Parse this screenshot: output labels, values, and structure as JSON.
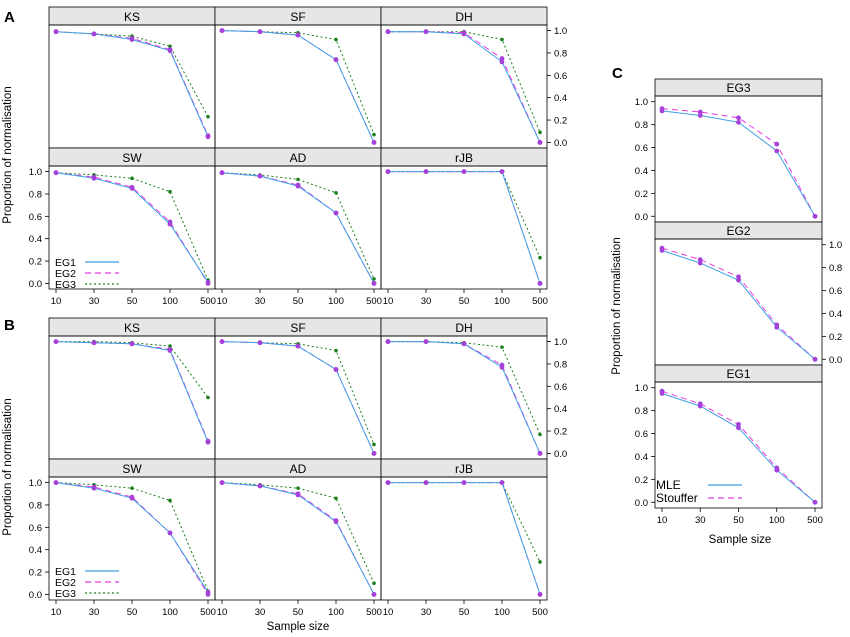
{
  "chart_data": [
    {
      "type": "line",
      "panel_label": "A",
      "xlabel": "",
      "ylabel": "Proportion of normalisation",
      "x_categories": [
        "10",
        "30",
        "50",
        "100",
        "500"
      ],
      "y_ticks": [
        "0.0",
        "0.2",
        "0.4",
        "0.6",
        "0.8",
        "1.0"
      ],
      "ylim": [
        -0.05,
        1.05
      ],
      "legend_entries": [
        "EG1",
        "EG2",
        "EG3"
      ],
      "legend_placement": "bottom-left of lower-left panel",
      "panels": [
        {
          "title": "KS",
          "series": [
            {
              "name": "EG1",
              "values": [
                0.99,
                0.97,
                0.92,
                0.82,
                0.05
              ]
            },
            {
              "name": "EG2",
              "values": [
                0.99,
                0.97,
                0.93,
                0.83,
                0.06
              ]
            },
            {
              "name": "EG3",
              "values": [
                0.99,
                0.97,
                0.95,
                0.86,
                0.23
              ]
            }
          ]
        },
        {
          "title": "SF",
          "series": [
            {
              "name": "EG1",
              "values": [
                1.0,
                0.99,
                0.96,
                0.74,
                0.0
              ]
            },
            {
              "name": "EG2",
              "values": [
                1.0,
                0.99,
                0.96,
                0.74,
                0.0
              ]
            },
            {
              "name": "EG3",
              "values": [
                1.0,
                0.99,
                0.98,
                0.92,
                0.07
              ]
            }
          ]
        },
        {
          "title": "DH",
          "series": [
            {
              "name": "EG1",
              "values": [
                0.99,
                0.99,
                0.97,
                0.72,
                0.0
              ]
            },
            {
              "name": "EG2",
              "values": [
                0.99,
                0.99,
                0.98,
                0.75,
                0.0
              ]
            },
            {
              "name": "EG3",
              "values": [
                0.99,
                0.99,
                0.99,
                0.92,
                0.09
              ]
            }
          ]
        },
        {
          "title": "SW",
          "series": [
            {
              "name": "EG1",
              "values": [
                0.99,
                0.94,
                0.85,
                0.53,
                0.01
              ]
            },
            {
              "name": "EG2",
              "values": [
                0.99,
                0.95,
                0.86,
                0.55,
                0.0
              ]
            },
            {
              "name": "EG3",
              "values": [
                0.99,
                0.97,
                0.94,
                0.82,
                0.03
              ]
            }
          ]
        },
        {
          "title": "AD",
          "series": [
            {
              "name": "EG1",
              "values": [
                0.99,
                0.96,
                0.87,
                0.63,
                0.0
              ]
            },
            {
              "name": "EG2",
              "values": [
                0.99,
                0.96,
                0.88,
                0.63,
                0.0
              ]
            },
            {
              "name": "EG3",
              "values": [
                0.99,
                0.97,
                0.93,
                0.81,
                0.04
              ]
            }
          ]
        },
        {
          "title": "rJB",
          "series": [
            {
              "name": "EG1",
              "values": [
                1.0,
                1.0,
                1.0,
                1.0,
                0.0
              ]
            },
            {
              "name": "EG2",
              "values": [
                1.0,
                1.0,
                1.0,
                1.0,
                0.0
              ]
            },
            {
              "name": "EG3",
              "values": [
                1.0,
                1.0,
                1.0,
                1.0,
                0.23
              ]
            }
          ]
        }
      ]
    },
    {
      "type": "line",
      "panel_label": "B",
      "xlabel": "Sample size",
      "ylabel": "Proportion of normalisation",
      "x_categories": [
        "10",
        "30",
        "50",
        "100",
        "500"
      ],
      "y_ticks": [
        "0.0",
        "0.2",
        "0.4",
        "0.6",
        "0.8",
        "1.0"
      ],
      "ylim": [
        -0.05,
        1.05
      ],
      "legend_entries": [
        "EG1",
        "EG2",
        "EG3"
      ],
      "legend_placement": "bottom-left of lower-left panel",
      "panels": [
        {
          "title": "KS",
          "series": [
            {
              "name": "EG1",
              "values": [
                1.0,
                0.99,
                0.98,
                0.92,
                0.1
              ]
            },
            {
              "name": "EG2",
              "values": [
                1.0,
                0.99,
                0.98,
                0.93,
                0.11
              ]
            },
            {
              "name": "EG3",
              "values": [
                1.0,
                1.0,
                0.99,
                0.96,
                0.5
              ]
            }
          ]
        },
        {
          "title": "SF",
          "series": [
            {
              "name": "EG1",
              "values": [
                1.0,
                0.99,
                0.96,
                0.75,
                0.0
              ]
            },
            {
              "name": "EG2",
              "values": [
                1.0,
                0.99,
                0.96,
                0.75,
                0.0
              ]
            },
            {
              "name": "EG3",
              "values": [
                1.0,
                0.99,
                0.98,
                0.92,
                0.08
              ]
            }
          ]
        },
        {
          "title": "DH",
          "series": [
            {
              "name": "EG1",
              "values": [
                1.0,
                1.0,
                0.98,
                0.77,
                0.0
              ]
            },
            {
              "name": "EG2",
              "values": [
                1.0,
                1.0,
                0.98,
                0.79,
                0.0
              ]
            },
            {
              "name": "EG3",
              "values": [
                1.0,
                1.0,
                0.99,
                0.95,
                0.17
              ]
            }
          ]
        },
        {
          "title": "SW",
          "series": [
            {
              "name": "EG1",
              "values": [
                1.0,
                0.95,
                0.86,
                0.55,
                0.02
              ]
            },
            {
              "name": "EG2",
              "values": [
                1.0,
                0.96,
                0.87,
                0.55,
                0.0
              ]
            },
            {
              "name": "EG3",
              "values": [
                1.0,
                0.98,
                0.95,
                0.84,
                0.03
              ]
            }
          ]
        },
        {
          "title": "AD",
          "series": [
            {
              "name": "EG1",
              "values": [
                1.0,
                0.97,
                0.89,
                0.65,
                0.0
              ]
            },
            {
              "name": "EG2",
              "values": [
                1.0,
                0.97,
                0.9,
                0.66,
                0.0
              ]
            },
            {
              "name": "EG3",
              "values": [
                1.0,
                0.98,
                0.95,
                0.86,
                0.1
              ]
            }
          ]
        },
        {
          "title": "rJB",
          "series": [
            {
              "name": "EG1",
              "values": [
                1.0,
                1.0,
                1.0,
                1.0,
                0.0
              ]
            },
            {
              "name": "EG2",
              "values": [
                1.0,
                1.0,
                1.0,
                1.0,
                0.0
              ]
            },
            {
              "name": "EG3",
              "values": [
                1.0,
                1.0,
                1.0,
                1.0,
                0.29
              ]
            }
          ]
        }
      ]
    },
    {
      "type": "line",
      "panel_label": "C",
      "xlabel": "Sample size",
      "ylabel": "Proportion of normalisation",
      "x_categories": [
        "10",
        "30",
        "50",
        "100",
        "500"
      ],
      "y_ticks": [
        "0.0",
        "0.2",
        "0.4",
        "0.6",
        "0.8",
        "1.0"
      ],
      "ylim": [
        -0.05,
        1.05
      ],
      "legend_entries": [
        "MLE",
        "Stouffer"
      ],
      "legend_placement": "bottom-left of EG1 panel",
      "panels": [
        {
          "title": "EG3",
          "series": [
            {
              "name": "MLE",
              "values": [
                0.92,
                0.88,
                0.82,
                0.57,
                0.0
              ]
            },
            {
              "name": "Stouffer",
              "values": [
                0.94,
                0.91,
                0.86,
                0.63,
                0.0
              ]
            }
          ]
        },
        {
          "title": "EG2",
          "series": [
            {
              "name": "MLE",
              "values": [
                0.95,
                0.84,
                0.69,
                0.28,
                0.0
              ]
            },
            {
              "name": "Stouffer",
              "values": [
                0.97,
                0.87,
                0.72,
                0.3,
                0.0
              ]
            }
          ]
        },
        {
          "title": "EG1",
          "series": [
            {
              "name": "MLE",
              "values": [
                0.95,
                0.84,
                0.65,
                0.28,
                0.0
              ]
            },
            {
              "name": "Stouffer",
              "values": [
                0.97,
                0.86,
                0.68,
                0.3,
                0.0
              ]
            }
          ]
        }
      ]
    }
  ],
  "colors": {
    "EG1": "#3ea0e6",
    "EG2": "#e83ce0",
    "EG3": "#1a7f1a",
    "MLE": "#3ea0e6",
    "Stouffer": "#e83ce0",
    "marker": "#a540d8",
    "strip": "#e6e6e6"
  }
}
